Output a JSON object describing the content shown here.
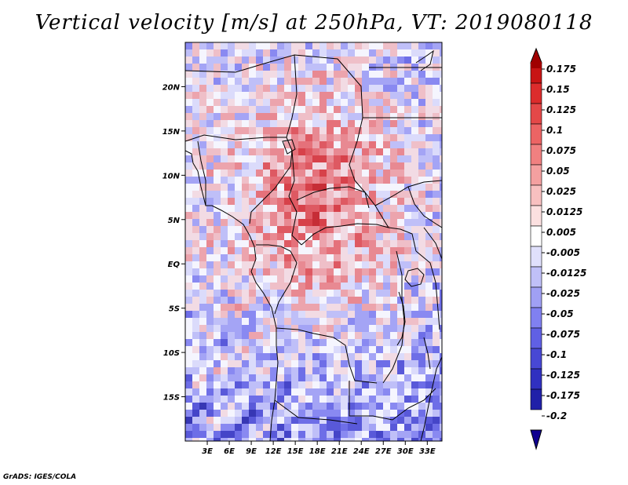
{
  "title": "Vertical velocity [m/s] at 250hPa, VT: 2019080118",
  "credit": "GrADS: IGES/COLA",
  "map": {
    "region": "Central/East Africa",
    "lon_range": [
      0,
      35
    ],
    "lat_range": [
      -20,
      25
    ],
    "lon_ticks": [
      {
        "value": 3,
        "label": "3E"
      },
      {
        "value": 6,
        "label": "6E"
      },
      {
        "value": 9,
        "label": "9E"
      },
      {
        "value": 12,
        "label": "12E"
      },
      {
        "value": 15,
        "label": "15E"
      },
      {
        "value": 18,
        "label": "18E"
      },
      {
        "value": 21,
        "label": "21E"
      },
      {
        "value": 24,
        "label": "24E"
      },
      {
        "value": 27,
        "label": "27E"
      },
      {
        "value": 30,
        "label": "30E"
      },
      {
        "value": 33,
        "label": "33E"
      }
    ],
    "lat_ticks": [
      {
        "value": 20,
        "label": "20N"
      },
      {
        "value": 15,
        "label": "15N"
      },
      {
        "value": 10,
        "label": "10N"
      },
      {
        "value": 5,
        "label": "5N"
      },
      {
        "value": 0,
        "label": "EQ"
      },
      {
        "value": -5,
        "label": "5S"
      },
      {
        "value": -10,
        "label": "10S"
      },
      {
        "value": -15,
        "label": "15S"
      }
    ]
  },
  "colorbar": {
    "levels": [
      "0.175",
      "0.15",
      "0.125",
      "0.1",
      "0.075",
      "0.05",
      "0.025",
      "0.0125",
      "0.005",
      "-0.005",
      "-0.0125",
      "-0.025",
      "-0.05",
      "-0.075",
      "-0.1",
      "-0.125",
      "-0.175",
      "-0.2"
    ],
    "colors": [
      "#a00000",
      "#c81414",
      "#dc2c2c",
      "#e44848",
      "#ec6464",
      "#f08080",
      "#f4a0a0",
      "#f8c0c0",
      "#fce0e0",
      "#ffffff",
      "#e0e0fc",
      "#c0c0f8",
      "#a0a0f4",
      "#8080f0",
      "#6060e4",
      "#4848d4",
      "#3030c0",
      "#2020a8",
      "#100090"
    ]
  }
}
